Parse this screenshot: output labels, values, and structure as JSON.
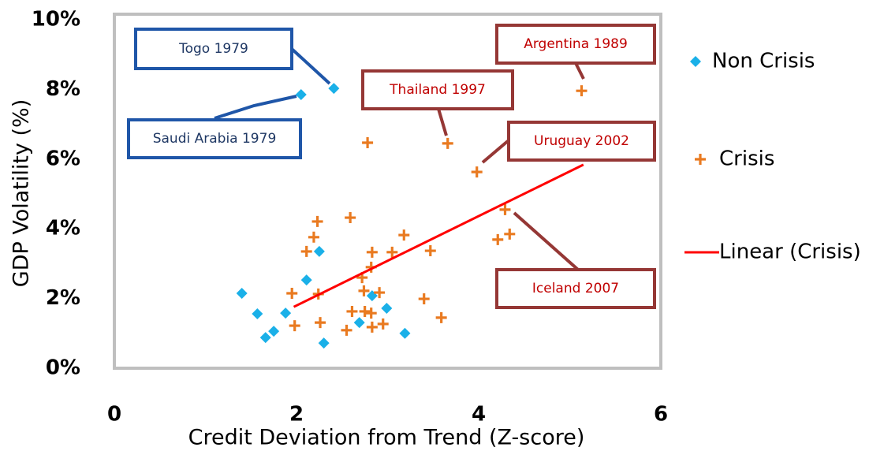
{
  "chart_data": {
    "type": "scatter",
    "xlabel": "Credit Deviation from Trend (Z-score)",
    "ylabel": "GDP Volatility (%)",
    "xlim": [
      0,
      6
    ],
    "xticks": [
      0,
      2,
      4,
      6
    ],
    "ylim": [
      0,
      10
    ],
    "yticks": [
      {
        "value": 0,
        "label": "0%"
      },
      {
        "value": 2,
        "label": "2%"
      },
      {
        "value": 4,
        "label": "4%"
      },
      {
        "value": 6,
        "label": "6%"
      },
      {
        "value": 8,
        "label": "8%"
      },
      {
        "value": 10,
        "label": "10%"
      }
    ],
    "series": [
      {
        "name": "Non Crisis",
        "color": "#1ab0e8",
        "marker": "diamond",
        "x": [
          1.4,
          1.57,
          1.66,
          1.75,
          1.88,
          2.11,
          2.25,
          2.3,
          2.69,
          2.83,
          2.99,
          3.19,
          2.05,
          2.41
        ],
        "values": [
          2.15,
          1.56,
          0.88,
          1.06,
          1.58,
          2.53,
          3.35,
          0.72,
          1.31,
          2.08,
          1.72,
          1.0,
          7.85,
          8.03
        ]
      },
      {
        "name": "Crisis",
        "color": "#e97a20",
        "marker": "plus",
        "x": [
          1.95,
          1.98,
          2.11,
          2.19,
          2.23,
          2.24,
          2.26,
          2.59,
          2.55,
          2.61,
          2.72,
          2.74,
          2.75,
          2.82,
          2.83,
          2.82,
          2.83,
          2.91,
          2.95,
          3.05,
          3.18,
          3.47,
          3.4,
          3.59,
          2.78,
          3.66,
          3.98,
          4.21,
          4.34,
          4.29,
          5.13
        ],
        "values": [
          2.15,
          1.22,
          3.35,
          3.76,
          4.21,
          2.13,
          1.31,
          4.32,
          1.09,
          1.63,
          2.6,
          2.22,
          1.63,
          1.58,
          3.33,
          2.9,
          1.18,
          2.17,
          1.27,
          3.33,
          3.82,
          3.37,
          1.99,
          1.45,
          6.47,
          6.45,
          5.63,
          3.69,
          3.85,
          4.55,
          7.96
        ]
      },
      {
        "name": "Linear (Crisis)",
        "color": "#ff0000",
        "marker": "line",
        "x": [
          1.97,
          5.15
        ],
        "values": [
          1.76,
          5.84
        ]
      }
    ],
    "annotations": [
      "Togo 1979",
      "Saudi Arabia 1979",
      "Argentina 1989",
      "Thailand 1997",
      "Uruguay 2002",
      "Iceland 2007"
    ]
  }
}
